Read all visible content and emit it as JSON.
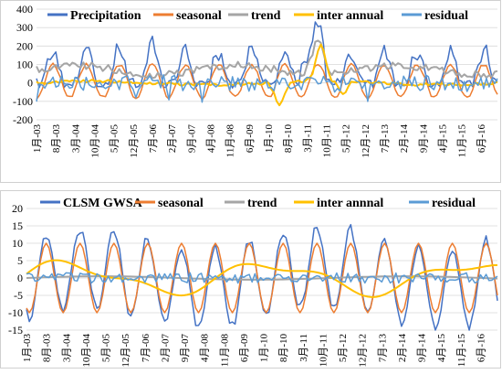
{
  "chart_data": [
    {
      "type": "line",
      "ylim": [
        -200,
        400
      ],
      "yticks": [
        -200,
        -100,
        0,
        100,
        200,
        300,
        400
      ],
      "x_tick_labels": [
        "1月-03",
        "8月-03",
        "3月-04",
        "10月-04",
        "5月-05",
        "12月-05",
        "7月-06",
        "2月-07",
        "9月-07",
        "4月-08",
        "11月-08",
        "6月-09",
        "1月-10",
        "8月-10",
        "3月-11",
        "10月-11",
        "5月-12",
        "12月-12",
        "7月-13",
        "2月-14",
        "9月-14",
        "4月-15",
        "11月-15",
        "6月-16"
      ],
      "grid": true,
      "legend_position": "top",
      "series": [
        {
          "name": "Precipitation",
          "color": "#4472c4",
          "kind": "precip"
        },
        {
          "name": "seasonal",
          "color": "#ed7d31",
          "kind": "seasonal"
        },
        {
          "name": "trend",
          "color": "#a5a5a5",
          "kind": "trend"
        },
        {
          "name": "inter annual",
          "color": "#ffc000",
          "kind": "inter"
        },
        {
          "name": "residual",
          "color": "#5b9bd5",
          "kind": "residual"
        }
      ]
    },
    {
      "type": "line",
      "ylim": [
        -15,
        20
      ],
      "yticks": [
        -15,
        -10,
        -5,
        0,
        5,
        10,
        15,
        20
      ],
      "x_tick_labels": [
        "1月-03",
        "8月-03",
        "3月-04",
        "10月-04",
        "5月-05",
        "12月-05",
        "7月-06",
        "2月-07",
        "9月-07",
        "4月-08",
        "11月-08",
        "6月-09",
        "1月-10",
        "8月-10",
        "3月-11",
        "10月-11",
        "5月-12",
        "12月-12",
        "7月-13",
        "2月-14",
        "9月-14",
        "4月-15",
        "11月-15",
        "6月-16"
      ],
      "grid": true,
      "legend_position": "top",
      "series": [
        {
          "name": "CLSM GWSA",
          "color": "#4472c4",
          "kind": "gwsa"
        },
        {
          "name": "seasonal",
          "color": "#ed7d31",
          "kind": "seasonal"
        },
        {
          "name": "trend",
          "color": "#a5a5a5",
          "kind": "trend"
        },
        {
          "name": "inter annnal",
          "color": "#ffc000",
          "kind": "inter"
        },
        {
          "name": "residual",
          "color": "#5b9bd5",
          "kind": "residual"
        }
      ]
    }
  ]
}
